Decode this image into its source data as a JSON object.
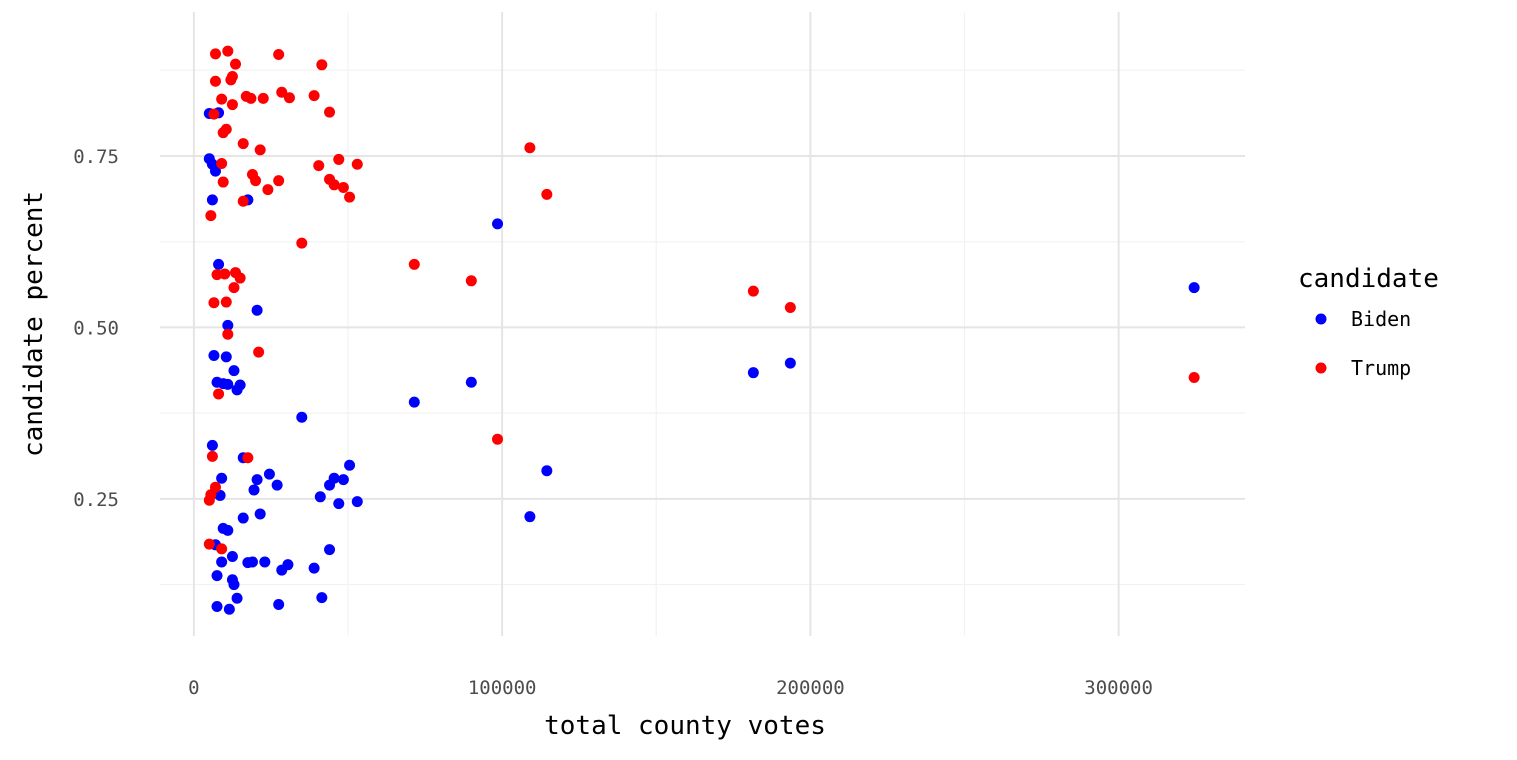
{
  "chart_data": {
    "type": "scatter",
    "xlabel": "total county votes",
    "ylabel": "candidate percent",
    "xlim": [
      -11000,
      341000
    ],
    "ylim": [
      0.05,
      0.96
    ],
    "x_ticks": [
      0,
      100000,
      200000,
      300000
    ],
    "x_tick_labels": [
      "0",
      "100000",
      "200000",
      "300000"
    ],
    "y_ticks": [
      0.25,
      0.5,
      0.75
    ],
    "y_tick_labels": [
      "0.25",
      "0.50",
      "0.75"
    ],
    "grid": true,
    "legend": {
      "title": "candidate",
      "position": "right",
      "entries": [
        {
          "label": "Biden",
          "color": "#0000ff"
        },
        {
          "label": "Trump",
          "color": "#ff0000"
        }
      ]
    },
    "series": [
      {
        "name": "Biden",
        "color": "#0000ff",
        "points": [
          [
            5000,
            0.812
          ],
          [
            5000,
            0.746
          ],
          [
            6000,
            0.738
          ],
          [
            7000,
            0.728
          ],
          [
            6000,
            0.686
          ],
          [
            17500,
            0.686
          ],
          [
            8000,
            0.813
          ],
          [
            8000,
            0.592
          ],
          [
            20500,
            0.525
          ],
          [
            11000,
            0.503
          ],
          [
            6500,
            0.459
          ],
          [
            10500,
            0.457
          ],
          [
            7500,
            0.42
          ],
          [
            9500,
            0.418
          ],
          [
            11000,
            0.417
          ],
          [
            15000,
            0.416
          ],
          [
            13000,
            0.437
          ],
          [
            14000,
            0.409
          ],
          [
            35000,
            0.369
          ],
          [
            6000,
            0.328
          ],
          [
            16000,
            0.31
          ],
          [
            9000,
            0.28
          ],
          [
            20500,
            0.278
          ],
          [
            24500,
            0.286
          ],
          [
            27000,
            0.27
          ],
          [
            19500,
            0.263
          ],
          [
            6500,
            0.258
          ],
          [
            8500,
            0.255
          ],
          [
            21500,
            0.228
          ],
          [
            16000,
            0.222
          ],
          [
            9500,
            0.207
          ],
          [
            11000,
            0.204
          ],
          [
            7000,
            0.183
          ],
          [
            12500,
            0.166
          ],
          [
            9000,
            0.158
          ],
          [
            17500,
            0.157
          ],
          [
            19000,
            0.158
          ],
          [
            23000,
            0.158
          ],
          [
            28500,
            0.146
          ],
          [
            30500,
            0.154
          ],
          [
            39000,
            0.149
          ],
          [
            44000,
            0.176
          ],
          [
            7500,
            0.138
          ],
          [
            12500,
            0.132
          ],
          [
            13000,
            0.125
          ],
          [
            14000,
            0.105
          ],
          [
            7500,
            0.093
          ],
          [
            11500,
            0.089
          ],
          [
            27500,
            0.096
          ],
          [
            41500,
            0.106
          ],
          [
            41000,
            0.253
          ],
          [
            44000,
            0.27
          ],
          [
            45500,
            0.28
          ],
          [
            47000,
            0.243
          ],
          [
            48500,
            0.278
          ],
          [
            50500,
            0.299
          ],
          [
            53000,
            0.246
          ],
          [
            71500,
            0.391
          ],
          [
            90000,
            0.42
          ],
          [
            98500,
            0.651
          ],
          [
            109000,
            0.224
          ],
          [
            114500,
            0.291
          ],
          [
            181500,
            0.434
          ],
          [
            193500,
            0.448
          ],
          [
            324500,
            0.558
          ]
        ]
      },
      {
        "name": "Trump",
        "color": "#ff0000",
        "points": [
          [
            7000,
            0.899
          ],
          [
            11000,
            0.903
          ],
          [
            27500,
            0.898
          ],
          [
            13500,
            0.884
          ],
          [
            41500,
            0.883
          ],
          [
            7000,
            0.859
          ],
          [
            12500,
            0.866
          ],
          [
            12000,
            0.861
          ],
          [
            9000,
            0.833
          ],
          [
            12500,
            0.825
          ],
          [
            17000,
            0.837
          ],
          [
            18500,
            0.834
          ],
          [
            22500,
            0.834
          ],
          [
            28500,
            0.843
          ],
          [
            31000,
            0.835
          ],
          [
            39000,
            0.838
          ],
          [
            44000,
            0.814
          ],
          [
            6500,
            0.811
          ],
          [
            9500,
            0.784
          ],
          [
            10500,
            0.789
          ],
          [
            21500,
            0.759
          ],
          [
            16000,
            0.768
          ],
          [
            9000,
            0.739
          ],
          [
            9500,
            0.712
          ],
          [
            19000,
            0.723
          ],
          [
            20000,
            0.714
          ],
          [
            27500,
            0.714
          ],
          [
            24000,
            0.701
          ],
          [
            16000,
            0.684
          ],
          [
            5500,
            0.663
          ],
          [
            40500,
            0.736
          ],
          [
            44000,
            0.716
          ],
          [
            45500,
            0.708
          ],
          [
            47000,
            0.745
          ],
          [
            48500,
            0.704
          ],
          [
            50500,
            0.69
          ],
          [
            53000,
            0.738
          ],
          [
            35000,
            0.623
          ],
          [
            7500,
            0.577
          ],
          [
            10000,
            0.578
          ],
          [
            13500,
            0.58
          ],
          [
            15000,
            0.572
          ],
          [
            13000,
            0.558
          ],
          [
            6500,
            0.536
          ],
          [
            10500,
            0.537
          ],
          [
            11000,
            0.49
          ],
          [
            21000,
            0.464
          ],
          [
            8000,
            0.403
          ],
          [
            17500,
            0.31
          ],
          [
            6000,
            0.312
          ],
          [
            7000,
            0.267
          ],
          [
            5500,
            0.256
          ],
          [
            5000,
            0.248
          ],
          [
            5000,
            0.184
          ],
          [
            9000,
            0.177
          ],
          [
            71500,
            0.592
          ],
          [
            90000,
            0.568
          ],
          [
            98500,
            0.337
          ],
          [
            109000,
            0.762
          ],
          [
            114500,
            0.694
          ],
          [
            181500,
            0.553
          ],
          [
            193500,
            0.529
          ],
          [
            324500,
            0.427
          ]
        ]
      }
    ]
  }
}
